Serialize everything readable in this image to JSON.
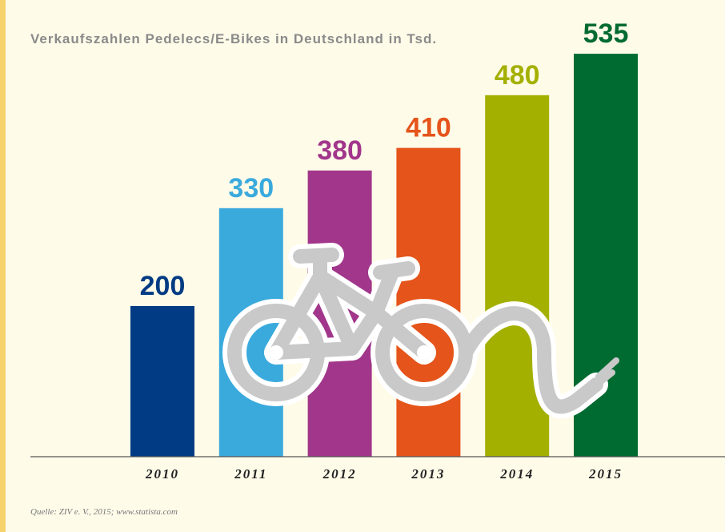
{
  "chart_data": {
    "type": "bar",
    "title": "Verkaufszahlen Pedelecs/E-Bikes in Deutschland in Tsd.",
    "categories": [
      "2010",
      "2011",
      "2012",
      "2013",
      "2014",
      "2015"
    ],
    "values": [
      200,
      330,
      380,
      410,
      480,
      535
    ],
    "colors": [
      "#003b83",
      "#3aaadd",
      "#a1368b",
      "#e5541a",
      "#a4b000",
      "#006b31"
    ],
    "source": "Quelle: ZIV e. V., 2015; www.statista.com"
  }
}
